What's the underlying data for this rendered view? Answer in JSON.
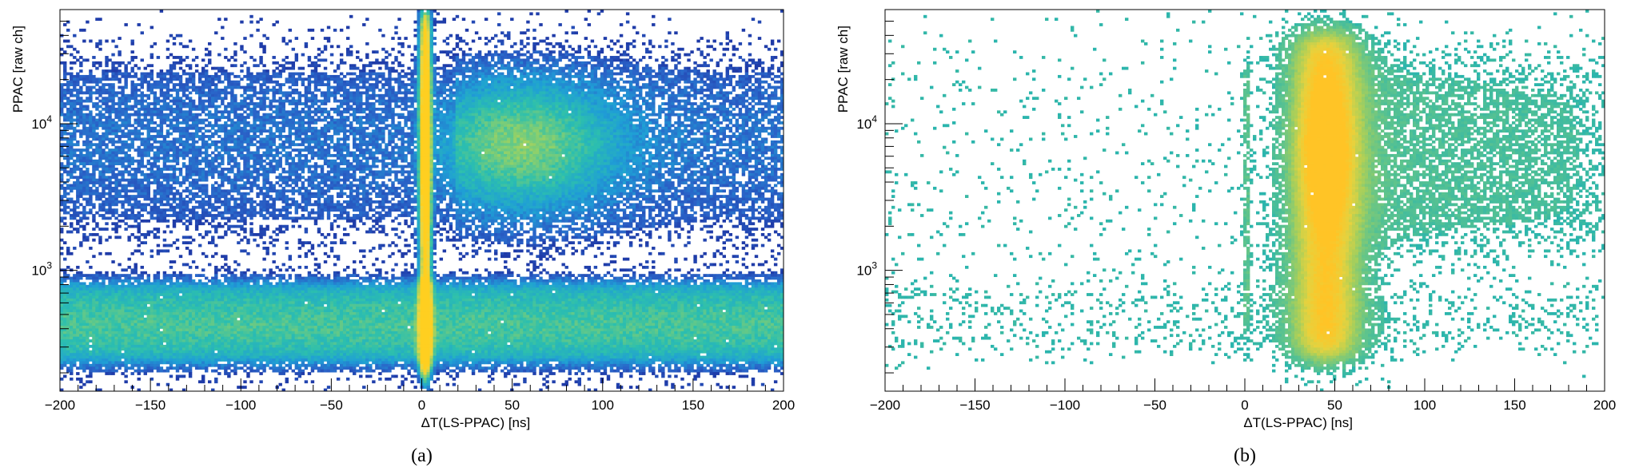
{
  "chart_data": [
    {
      "type": "heatmap",
      "panel_label": "(a)",
      "xlabel": "ΔT(LS-PPAC) [ns]",
      "ylabel": "PPAC [raw ch]",
      "xlim": [
        -200,
        200
      ],
      "ylim": [
        150,
        60000
      ],
      "x_scale": "linear",
      "y_scale": "log",
      "x_ticks": [
        -200,
        -150,
        -100,
        -50,
        0,
        50,
        100,
        150,
        200
      ],
      "x_tick_labels": [
        "−200",
        "−150",
        "−100",
        "−50",
        "0",
        "50",
        "100",
        "150",
        "200"
      ],
      "y_tick_labels": [
        {
          "value": 1000,
          "base": "10",
          "exp": "3"
        },
        {
          "value": 10000,
          "base": "10",
          "exp": "4"
        }
      ],
      "colormap": [
        "#1f3ba8",
        "#2a63c8",
        "#1f9ed6",
        "#2cbfae",
        "#8fd06a",
        "#e8d642",
        "#ffcf20"
      ],
      "features": [
        {
          "name": "low-amplitude band",
          "x_range": [
            -200,
            200
          ],
          "y_range": [
            230,
            800
          ],
          "intensity": 0.45
        },
        {
          "name": "upper diffuse band",
          "x_range": [
            -200,
            200
          ],
          "y_range": [
            2500,
            30000
          ],
          "intensity": 0.08
        },
        {
          "name": "prompt gamma peak",
          "x_center": 2,
          "x_width": 4,
          "y_range": [
            200,
            60000
          ],
          "intensity": 1.0
        },
        {
          "name": "delayed neutron cloud",
          "x_center": 55,
          "x_width": 45,
          "y_center": 7000,
          "intensity": 0.35
        }
      ],
      "grid": false
    },
    {
      "type": "heatmap",
      "panel_label": "(b)",
      "xlabel": "ΔT(LS-PPAC) [ns]",
      "ylabel": "PPAC [raw ch]",
      "xlim": [
        -200,
        200
      ],
      "ylim": [
        150,
        60000
      ],
      "x_scale": "linear",
      "y_scale": "log",
      "x_ticks": [
        -200,
        -150,
        -100,
        -50,
        0,
        50,
        100,
        150,
        200
      ],
      "x_tick_labels": [
        "−200",
        "−150",
        "−100",
        "−50",
        "0",
        "50",
        "100",
        "150",
        "200"
      ],
      "y_tick_labels": [
        {
          "value": 1000,
          "base": "10",
          "exp": "3"
        },
        {
          "value": 10000,
          "base": "10",
          "exp": "4"
        }
      ],
      "colormap": [
        "#2bb5ad",
        "#5fc48c",
        "#a9cf5a",
        "#e6d23e",
        "#ffc426"
      ],
      "features": [
        {
          "name": "fission fragment blob",
          "x_center": 45,
          "x_width": 28,
          "y_range": [
            250,
            40000
          ],
          "y_center": 6000,
          "intensity": 1.0
        },
        {
          "name": "thin prompt line",
          "x_center": 1,
          "x_width": 2,
          "y_range": [
            400,
            25000
          ],
          "intensity": 0.15
        },
        {
          "name": "right-side tail",
          "x_range": [
            60,
            200
          ],
          "y_range": [
            2000,
            25000
          ],
          "intensity": 0.12
        },
        {
          "name": "sparse low-amplitude background",
          "x_range": [
            -200,
            200
          ],
          "y_range": [
            300,
            700
          ],
          "intensity": 0.04
        }
      ],
      "grid": false
    }
  ]
}
